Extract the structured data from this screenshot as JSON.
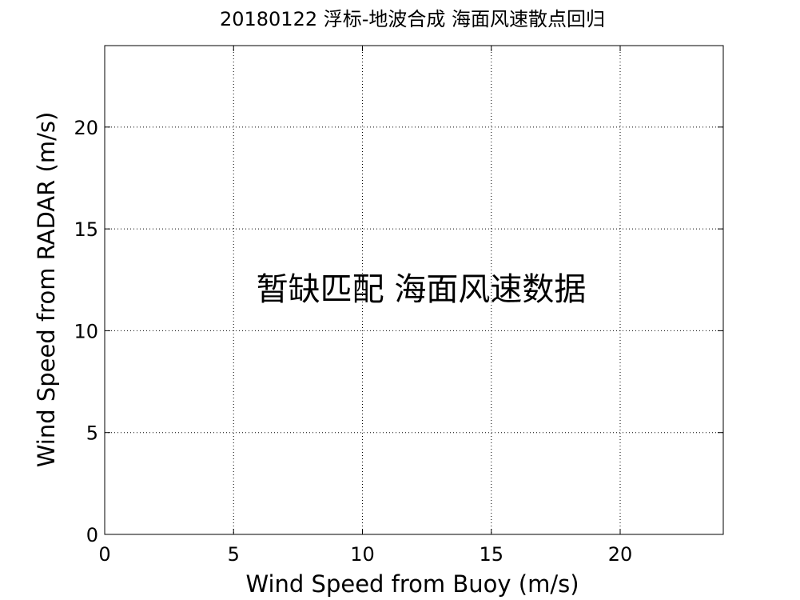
{
  "chart_data": {
    "type": "scatter",
    "title": "20180122 浮标-地波合成 海面风速散点回归",
    "xlabel": "Wind Speed from Buoy (m/s)",
    "ylabel": "Wind Speed from RADAR (m/s)",
    "xlim": [
      0,
      24
    ],
    "ylim": [
      0,
      24
    ],
    "xticks": [
      0,
      5,
      10,
      15,
      20
    ],
    "yticks": [
      0,
      5,
      10,
      15,
      20
    ],
    "grid": true,
    "grid_style": "dotted",
    "series": [],
    "annotation": "暂缺匹配 海面风速数据",
    "colors": {
      "axis": "#000000",
      "grid": "#000000",
      "background": "#ffffff"
    }
  }
}
